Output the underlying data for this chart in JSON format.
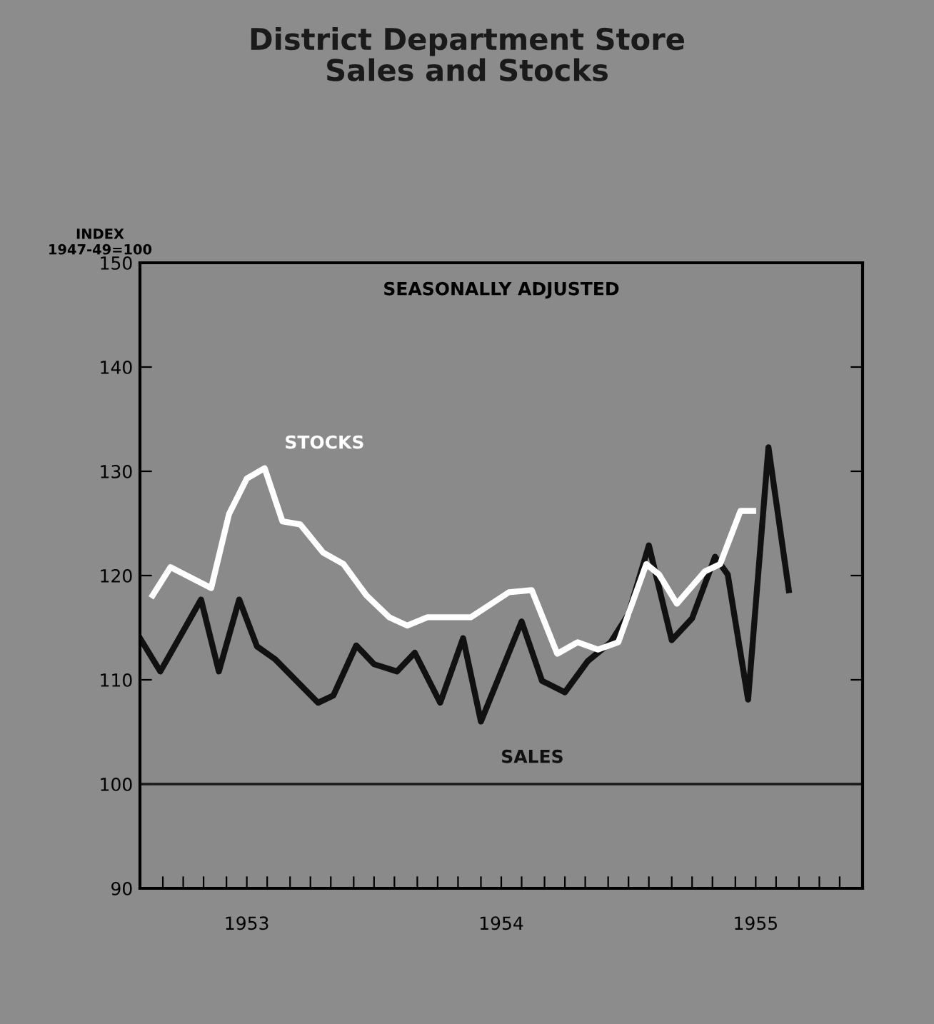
{
  "chart_data": {
    "type": "line",
    "title": "District Department Store\nSales and Stocks",
    "ylabel": "INDEX\n1947-49=100",
    "annotations": [
      "SEASONALLY ADJUSTED"
    ],
    "xlim": [
      1953.08,
      1955.92
    ],
    "ylim": [
      90,
      150
    ],
    "yticks": [
      90,
      100,
      110,
      120,
      130,
      140,
      150
    ],
    "xticks": [
      {
        "value": 1953.5,
        "label": "1953"
      },
      {
        "value": 1954.5,
        "label": "1954"
      },
      {
        "value": 1955.5,
        "label": "1955"
      },
      {
        "value": 1953.17,
        "label": null
      },
      {
        "value": 1953.25,
        "label": null
      },
      {
        "value": 1953.33,
        "label": null
      },
      {
        "value": 1953.42,
        "label": null
      },
      {
        "value": 1953.58,
        "label": null
      },
      {
        "value": 1953.67,
        "label": null
      },
      {
        "value": 1953.75,
        "label": null
      },
      {
        "value": 1953.83,
        "label": null
      },
      {
        "value": 1953.92,
        "label": null
      },
      {
        "value": 1954.0,
        "label": null
      },
      {
        "value": 1954.08,
        "label": null
      },
      {
        "value": 1954.17,
        "label": null
      },
      {
        "value": 1954.25,
        "label": null
      },
      {
        "value": 1954.33,
        "label": null
      },
      {
        "value": 1954.42,
        "label": null
      },
      {
        "value": 1954.58,
        "label": null
      },
      {
        "value": 1954.67,
        "label": null
      },
      {
        "value": 1954.75,
        "label": null
      },
      {
        "value": 1954.83,
        "label": null
      },
      {
        "value": 1954.92,
        "label": null
      },
      {
        "value": 1955.0,
        "label": null
      },
      {
        "value": 1955.08,
        "label": null
      },
      {
        "value": 1955.17,
        "label": null
      },
      {
        "value": 1955.25,
        "label": null
      },
      {
        "value": 1955.33,
        "label": null
      },
      {
        "value": 1955.42,
        "label": null
      },
      {
        "value": 1955.58,
        "label": null
      },
      {
        "value": 1955.67,
        "label": null
      },
      {
        "value": 1955.75,
        "label": null
      },
      {
        "value": 1955.83,
        "label": null
      }
    ],
    "ref_lines": [
      {
        "axis": "y",
        "value": 100,
        "label": null,
        "color": "#1a1a1a"
      }
    ],
    "grid": false,
    "legend": false,
    "marker": "none",
    "line_style": "solid",
    "series": [
      {
        "name": "SALES",
        "color": "#111111",
        "x": [
          1953.08,
          1953.16,
          1953.32,
          1953.39,
          1953.47,
          1953.54,
          1953.61,
          1953.78,
          1953.84,
          1953.93,
          1954.0,
          1954.09,
          1954.16,
          1954.26,
          1954.35,
          1954.42,
          1954.58,
          1954.66,
          1954.75,
          1954.84,
          1954.93,
          1955.0,
          1955.08,
          1955.17,
          1955.25,
          1955.34,
          1955.39,
          1955.47,
          1955.55,
          1955.63
        ],
        "values": [
          114.0,
          110.8,
          117.7,
          110.8,
          117.7,
          113.2,
          112.0,
          107.8,
          108.5,
          113.3,
          111.5,
          110.8,
          112.6,
          107.8,
          114.0,
          106.0,
          115.6,
          109.9,
          108.8,
          111.8,
          113.6,
          116.3,
          122.9,
          113.8,
          115.9,
          121.8,
          120.1,
          108.1,
          132.3,
          118.6
        ]
      },
      {
        "name": "STOCKS",
        "color": "#ffffff",
        "x": [
          1953.13,
          1953.2,
          1953.36,
          1953.43,
          1953.5,
          1953.57,
          1953.64,
          1953.71,
          1953.8,
          1953.88,
          1953.97,
          1954.06,
          1954.13,
          1954.21,
          1954.38,
          1954.53,
          1954.62,
          1954.72,
          1954.8,
          1954.88,
          1954.96,
          1955.07,
          1955.12,
          1955.19,
          1955.3,
          1955.36,
          1955.44,
          1955.49
        ],
        "values": [
          118.1,
          120.8,
          118.8,
          125.9,
          129.3,
          130.3,
          125.2,
          124.9,
          122.2,
          121.1,
          118.1,
          116.0,
          115.2,
          116.0,
          116.0,
          118.4,
          118.6,
          112.5,
          113.6,
          112.9,
          113.6,
          121.1,
          120.1,
          117.3,
          120.4,
          121.1,
          126.2,
          126.2
        ]
      }
    ]
  }
}
